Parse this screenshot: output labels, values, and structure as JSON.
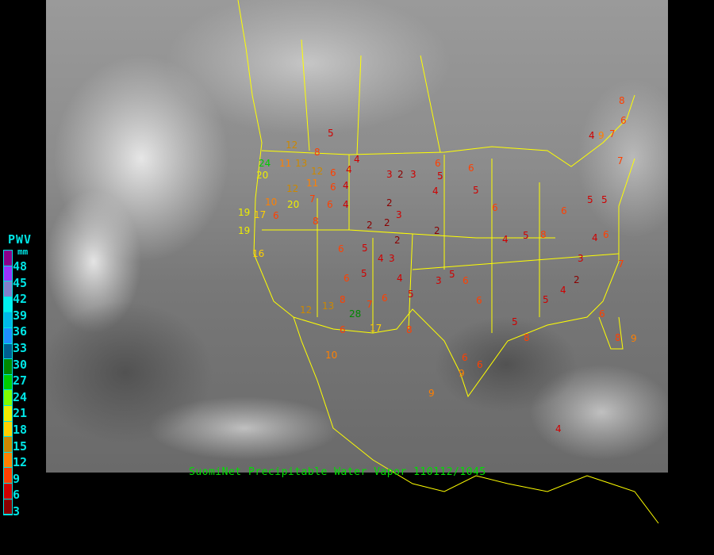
{
  "legend": {
    "title": "PWV",
    "unit": "mm",
    "ticks": [
      "48",
      "45",
      "42",
      "39",
      "36",
      "33",
      "30",
      "27",
      "24",
      "21",
      "18",
      "15",
      "12",
      "9",
      "6",
      "3"
    ],
    "colors_top_to_bottom": [
      "#8b008b",
      "#9933ff",
      "#8080cc",
      "#00f0f0",
      "#00b8e8",
      "#1e90ff",
      "#005f90",
      "#008800",
      "#00cc00",
      "#80ff00",
      "#eeee00",
      "#ffd000",
      "#cc8800",
      "#ff8000",
      "#ff4000",
      "#d00000",
      "#8b0000"
    ]
  },
  "caption": "SuomiNet Precipitable Water Vapor 110112/1045",
  "border_color": "#ffff00",
  "stations": [
    "5",
    "12",
    "8",
    "4",
    "24",
    "11",
    "13",
    "12",
    "6",
    "4",
    "3",
    "2",
    "3",
    "6",
    "5",
    "6",
    "4",
    "2",
    "6",
    "12",
    "11",
    "7",
    "10",
    "6",
    "4",
    "2",
    "3",
    "2",
    "4",
    "5",
    "6",
    "19",
    "17",
    "19",
    "6",
    "8",
    "2",
    "2",
    "4",
    "3",
    "5",
    "6",
    "16",
    "20",
    "6",
    "5",
    "4",
    "3",
    "5",
    "6",
    "5",
    "4",
    "13",
    "8",
    "6",
    "7",
    "6",
    "5",
    "8",
    "6",
    "5",
    "5",
    "3",
    "2",
    "4",
    "5",
    "4",
    "6",
    "7",
    "7",
    "8",
    "6",
    "4",
    "9",
    "7",
    "6",
    "8",
    "9",
    "9",
    "10",
    "20",
    "28",
    "12",
    "6",
    "17",
    "8",
    "6",
    "6",
    "8",
    "5",
    "4",
    "9"
  ]
}
